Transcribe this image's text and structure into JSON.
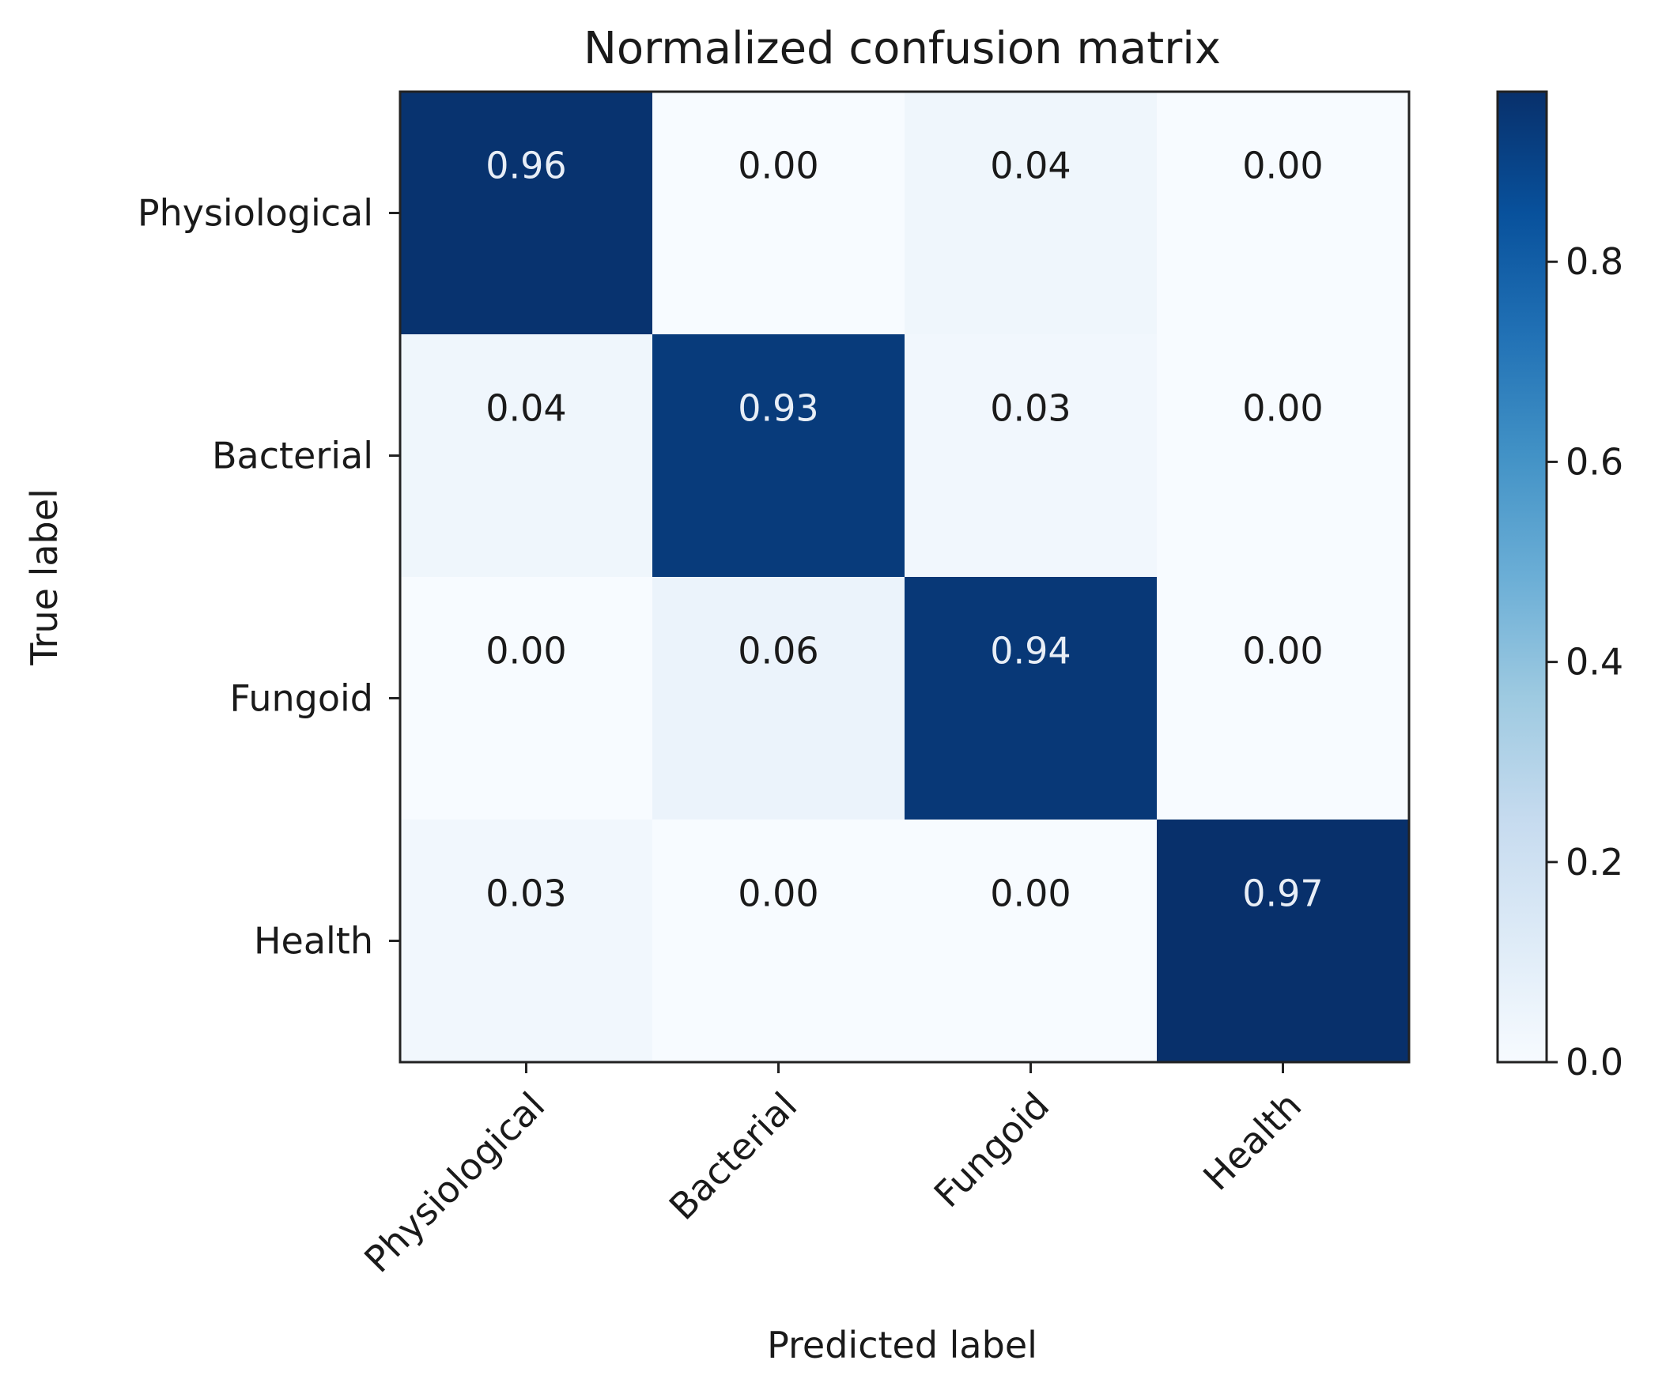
{
  "chart_data": {
    "type": "heatmap",
    "title": "Normalized confusion matrix",
    "xlabel": "Predicted label",
    "ylabel": "True label",
    "x_categories": [
      "Physiological",
      "Bacterial",
      "Fungoid",
      "Health"
    ],
    "y_categories": [
      "Physiological",
      "Bacterial",
      "Fungoid",
      "Health"
    ],
    "values": [
      [
        0.96,
        0.0,
        0.04,
        0.0
      ],
      [
        0.04,
        0.93,
        0.03,
        0.0
      ],
      [
        0.0,
        0.06,
        0.94,
        0.0
      ],
      [
        0.03,
        0.0,
        0.0,
        0.97
      ]
    ],
    "value_labels": [
      [
        "0.96",
        "0.00",
        "0.04",
        "0.00"
      ],
      [
        "0.04",
        "0.93",
        "0.03",
        "0.00"
      ],
      [
        "0.00",
        "0.06",
        "0.94",
        "0.00"
      ],
      [
        "0.03",
        "0.00",
        "0.00",
        "0.97"
      ]
    ],
    "colormap": "Blues",
    "colorbar": {
      "range": [
        0.0,
        0.97
      ],
      "ticks": [
        0.0,
        0.2,
        0.4,
        0.6,
        0.8
      ],
      "tick_labels": [
        "0.0",
        "0.2",
        "0.4",
        "0.6",
        "0.8"
      ]
    },
    "grid": false
  }
}
